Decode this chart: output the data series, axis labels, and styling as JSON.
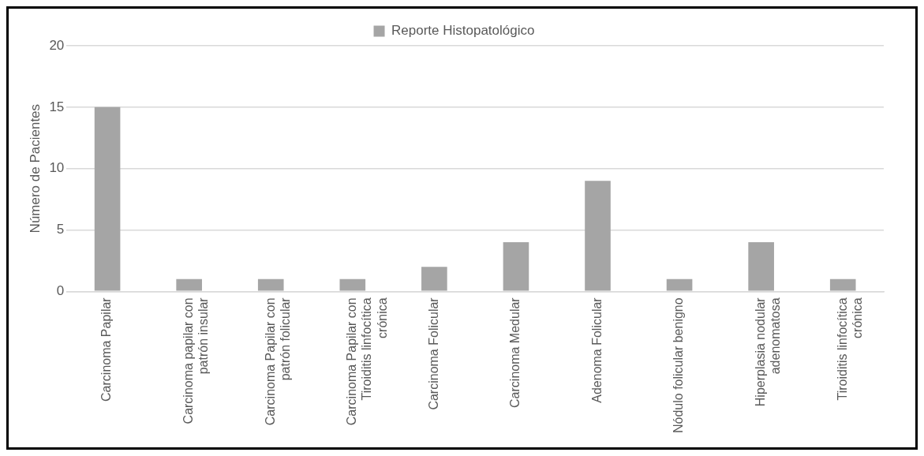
{
  "chart_data": {
    "type": "bar",
    "ylabel": "Número de Pacientes",
    "categories": [
      "Carcinoma Papilar",
      "Carcinoma papilar con patrón insular",
      "Carcinoma Papilar con patrón folicular",
      "Carcinoma Papilar con Tiroiditis linfocítica crónica",
      "Carcinoma Folicular",
      "Carcinoma Medular",
      "Adenoma Folicular",
      "Nódulo folicular benigno",
      "Hiperplasia nodular adenomatosa",
      "Tiroiditis linfocítica crónica"
    ],
    "series": [
      {
        "name": "Reporte Histopatológico",
        "color": "#a5a5a5",
        "values": [
          15,
          1,
          1,
          1,
          2,
          4,
          9,
          1,
          4,
          1
        ]
      }
    ],
    "ylim": [
      0,
      20
    ],
    "yticks": [
      0,
      5,
      10,
      15,
      20
    ],
    "grid": "y",
    "legend": "top"
  }
}
